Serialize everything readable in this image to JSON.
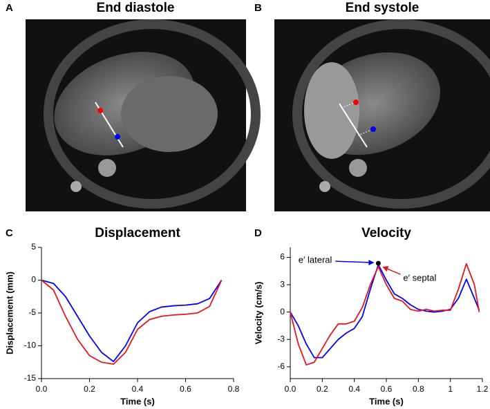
{
  "panels": [
    {
      "letter": "A",
      "title": "End diastole"
    },
    {
      "letter": "B",
      "title": "End systole"
    }
  ],
  "chart_data": [
    {
      "type": "line",
      "letter": "C",
      "title": "Displacement",
      "xlabel": "Time (s)",
      "ylabel": "Displacement (mm)",
      "x": [
        0,
        0.05,
        0.1,
        0.15,
        0.2,
        0.25,
        0.3,
        0.35,
        0.4,
        0.45,
        0.5,
        0.55,
        0.6,
        0.65,
        0.7,
        0.75
      ],
      "series": [
        {
          "color": "#0000ff",
          "values": [
            0,
            -0.5,
            -2.5,
            -5.5,
            -8.5,
            -11,
            -12.4,
            -10,
            -6.5,
            -4.8,
            -4.1,
            -3.9,
            -3.8,
            -3.6,
            -2.8,
            0
          ]
        },
        {
          "color": "#e8141c",
          "values": [
            0,
            -1.5,
            -5.5,
            -9,
            -11.5,
            -12.5,
            -12.8,
            -11,
            -7.5,
            -6,
            -5.5,
            -5.3,
            -5.2,
            -5,
            -4,
            0
          ]
        }
      ],
      "xlim": [
        0,
        0.8
      ],
      "xticks": [
        {
          "value": 0,
          "label": "0.0"
        },
        0.2,
        0.4,
        0.6,
        0.8
      ],
      "ylim": [
        -15,
        5
      ],
      "yticks": [
        5,
        0,
        -5,
        -10,
        -15
      ]
    },
    {
      "type": "line",
      "letter": "D",
      "title": "Velocity",
      "xlabel": "Time (s)",
      "ylabel": "Velocity (cm/s)",
      "x": [
        0,
        0.05,
        0.1,
        0.15,
        0.2,
        0.25,
        0.3,
        0.35,
        0.4,
        0.45,
        0.5,
        0.55,
        0.6,
        0.65,
        0.7,
        0.75,
        0.8,
        0.85,
        0.9,
        0.95,
        1.0,
        1.05,
        1.1,
        1.15,
        1.18
      ],
      "series": [
        {
          "color": "#0000ff",
          "values": [
            0,
            -1.5,
            -3.5,
            -5,
            -5,
            -4,
            -3,
            -2.3,
            -1.8,
            -0.5,
            2.5,
            5.2,
            3.5,
            2,
            1.5,
            0.8,
            0.3,
            0.1,
            0,
            0.1,
            0.3,
            1.5,
            3.6,
            1.5,
            0.2
          ]
        },
        {
          "color": "#e8141c",
          "values": [
            0,
            -3.5,
            -5.8,
            -5.5,
            -4,
            -2.5,
            -1.3,
            -1.3,
            -1,
            0.5,
            3,
            5.0,
            3,
            1.5,
            1.2,
            0.3,
            0.1,
            0.3,
            0.1,
            0.2,
            0.2,
            2.5,
            5.3,
            3,
            0
          ]
        }
      ],
      "annotations": [
        {
          "text": "e′ lateral",
          "color": "#0000ff"
        },
        {
          "text": "e′ septal",
          "color": "#e8141c"
        }
      ],
      "xlim": [
        0,
        1.2
      ],
      "xticks": [
        {
          "value": 0,
          "label": "0.0"
        },
        0.2,
        0.4,
        0.6,
        0.8,
        1.0,
        1.2
      ],
      "ylim": [
        -7.3,
        7.1
      ],
      "yticks": [
        -6,
        -3,
        0,
        3,
        6
      ]
    }
  ]
}
